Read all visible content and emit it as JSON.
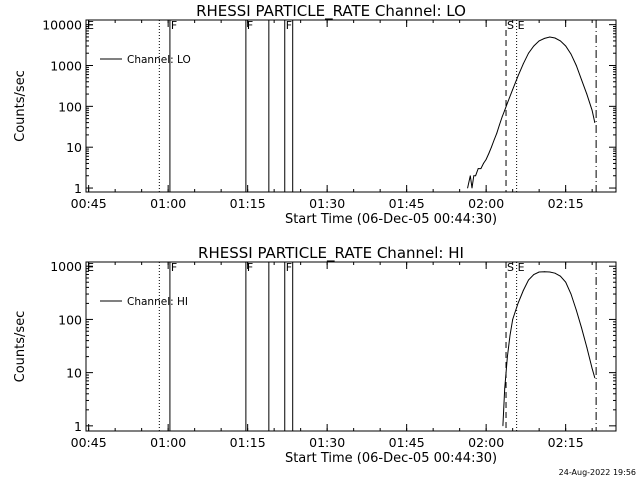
{
  "chart_data": [
    {
      "type": "line",
      "title": "RHESSI PARTICLE_RATE Channel: LO",
      "xlabel": "Start Time (06-Dec-05 00:44:30)",
      "ylabel": "Counts/sec",
      "yscale": "log",
      "x_ticks": [
        "00:45",
        "01:00",
        "01:15",
        "01:30",
        "01:45",
        "02:00",
        "02:15"
      ],
      "y_ticks": [
        "1",
        "10",
        "100",
        "1000",
        "10000"
      ],
      "xlim": [
        "00:44:30",
        "02:24:30"
      ],
      "ylim": [
        0.8,
        13000
      ],
      "legend": "top-left",
      "series": [
        {
          "name": "Channel: LO",
          "x": [
            "01:56:30",
            "01:57:00",
            "01:57:20",
            "01:57:40",
            "01:58:00",
            "01:58:30",
            "01:59:00",
            "01:59:30",
            "02:00:00",
            "02:00:30",
            "02:01:00",
            "02:01:30",
            "02:02:00",
            "02:02:30",
            "02:03:00",
            "02:03:30",
            "02:04:00",
            "02:05:00",
            "02:06:00",
            "02:07:00",
            "02:08:00",
            "02:09:00",
            "02:10:00",
            "02:11:00",
            "02:12:00",
            "02:13:00",
            "02:14:00",
            "02:15:00",
            "02:16:00",
            "02:17:00",
            "02:18:00",
            "02:19:00",
            "02:20:00",
            "02:20:30"
          ],
          "y": [
            1,
            2,
            1,
            2,
            2,
            3,
            3,
            4,
            5,
            7,
            10,
            15,
            22,
            35,
            55,
            80,
            120,
            260,
            550,
            1100,
            2000,
            3000,
            4000,
            4600,
            5000,
            4700,
            4000,
            3000,
            1900,
            1000,
            450,
            200,
            80,
            40
          ]
        }
      ],
      "markers": [
        {
          "time": "00:44:30",
          "label": "E"
        },
        {
          "time": "00:58:20",
          "label": ""
        },
        {
          "time": "01:00:20",
          "label": "F"
        },
        {
          "time": "01:14:40",
          "label": "F"
        },
        {
          "time": "01:19:00",
          "label": ""
        },
        {
          "time": "01:22:00",
          "label": "F"
        },
        {
          "time": "01:23:30",
          "label": ""
        },
        {
          "time": "02:03:45",
          "label": "S"
        },
        {
          "time": "02:05:45",
          "label": "E"
        },
        {
          "time": "02:20:45",
          "label": ""
        }
      ]
    },
    {
      "type": "line",
      "title": "RHESSI PARTICLE_RATE Channel: HI",
      "xlabel": "Start Time (06-Dec-05 00:44:30)",
      "ylabel": "Counts/sec",
      "yscale": "log",
      "x_ticks": [
        "00:45",
        "01:00",
        "01:15",
        "01:30",
        "01:45",
        "02:00",
        "02:15"
      ],
      "y_ticks": [
        "1",
        "10",
        "100",
        "1000"
      ],
      "xlim": [
        "00:44:30",
        "02:24:30"
      ],
      "ylim": [
        0.8,
        1200
      ],
      "legend": "top-left",
      "series": [
        {
          "name": "Channel: HI",
          "x": [
            "02:03:10",
            "02:03:30",
            "02:04:00",
            "02:04:30",
            "02:05:00",
            "02:06:00",
            "02:07:00",
            "02:08:00",
            "02:09:00",
            "02:10:00",
            "02:11:00",
            "02:12:00",
            "02:13:00",
            "02:14:00",
            "02:15:00",
            "02:16:00",
            "02:17:00",
            "02:18:00",
            "02:19:00",
            "02:20:00",
            "02:20:30"
          ],
          "y": [
            1,
            5,
            20,
            50,
            100,
            200,
            350,
            550,
            700,
            780,
            790,
            780,
            740,
            650,
            500,
            300,
            150,
            70,
            30,
            12,
            8
          ]
        }
      ],
      "markers": [
        {
          "time": "00:44:30",
          "label": "E"
        },
        {
          "time": "00:58:20",
          "label": ""
        },
        {
          "time": "01:00:20",
          "label": "F"
        },
        {
          "time": "01:14:40",
          "label": "F"
        },
        {
          "time": "01:19:00",
          "label": ""
        },
        {
          "time": "01:22:00",
          "label": "F"
        },
        {
          "time": "01:23:30",
          "label": ""
        },
        {
          "time": "02:03:45",
          "label": "S"
        },
        {
          "time": "02:05:45",
          "label": "E"
        },
        {
          "time": "02:20:45",
          "label": ""
        }
      ]
    }
  ],
  "footer": {
    "timestamp": "24-Aug-2022 19:56"
  }
}
